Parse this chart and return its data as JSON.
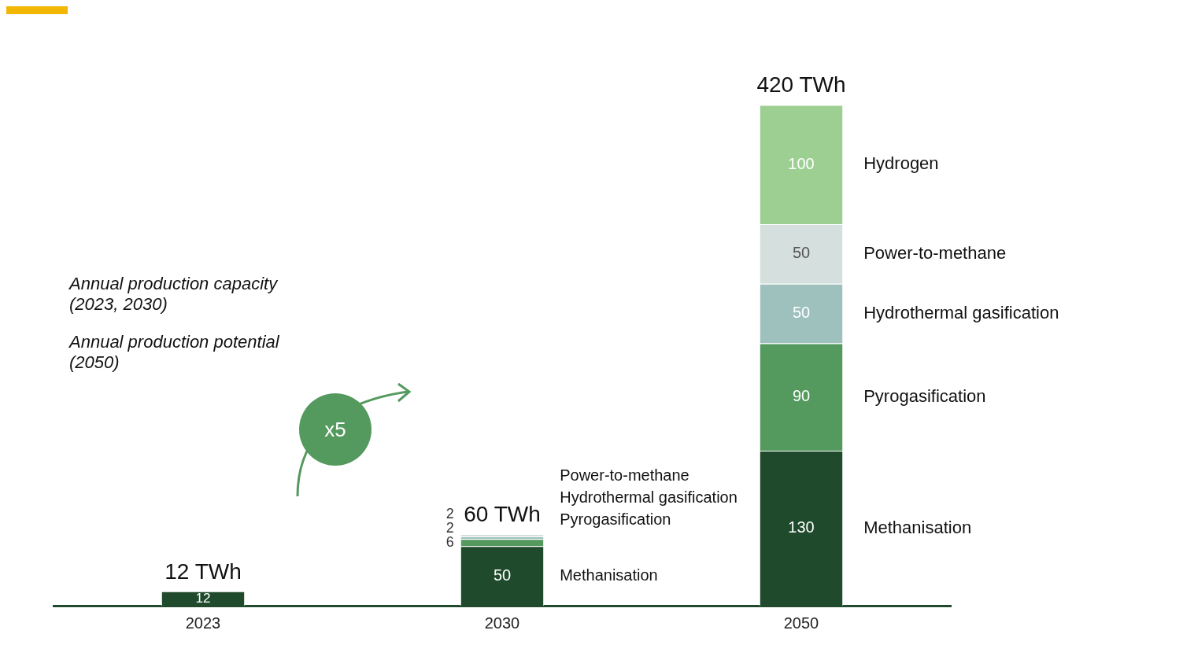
{
  "chart_data": {
    "type": "bar",
    "stacked": true,
    "data_labels": true,
    "categories": [
      "2023",
      "2030",
      "2050"
    ],
    "series": [
      {
        "name": "Methanisation",
        "color": "#1f4a2b",
        "values": [
          12,
          50,
          130
        ]
      },
      {
        "name": "Pyrogasification",
        "color": "#54995e",
        "values": [
          null,
          6,
          90
        ]
      },
      {
        "name": "Hydrothermal gasification",
        "color": "#9ec1bd",
        "values": [
          null,
          2,
          50
        ]
      },
      {
        "name": "Power-to-methane",
        "color": "#d5e0de",
        "values": [
          null,
          2,
          50
        ]
      },
      {
        "name": "Hydrogen",
        "color": "#9dcf93",
        "values": [
          null,
          null,
          100
        ]
      }
    ],
    "totals": [
      "12 TWh",
      "60 TWh",
      "420 TWh"
    ],
    "annotations": [
      "Annual production capacity (2023, 2030)",
      "Annual production potential (2050)",
      "x5",
      "Power-to-methane",
      "Hydrothermal gasification",
      "Pyrogasification",
      "Methanisation"
    ]
  }
}
